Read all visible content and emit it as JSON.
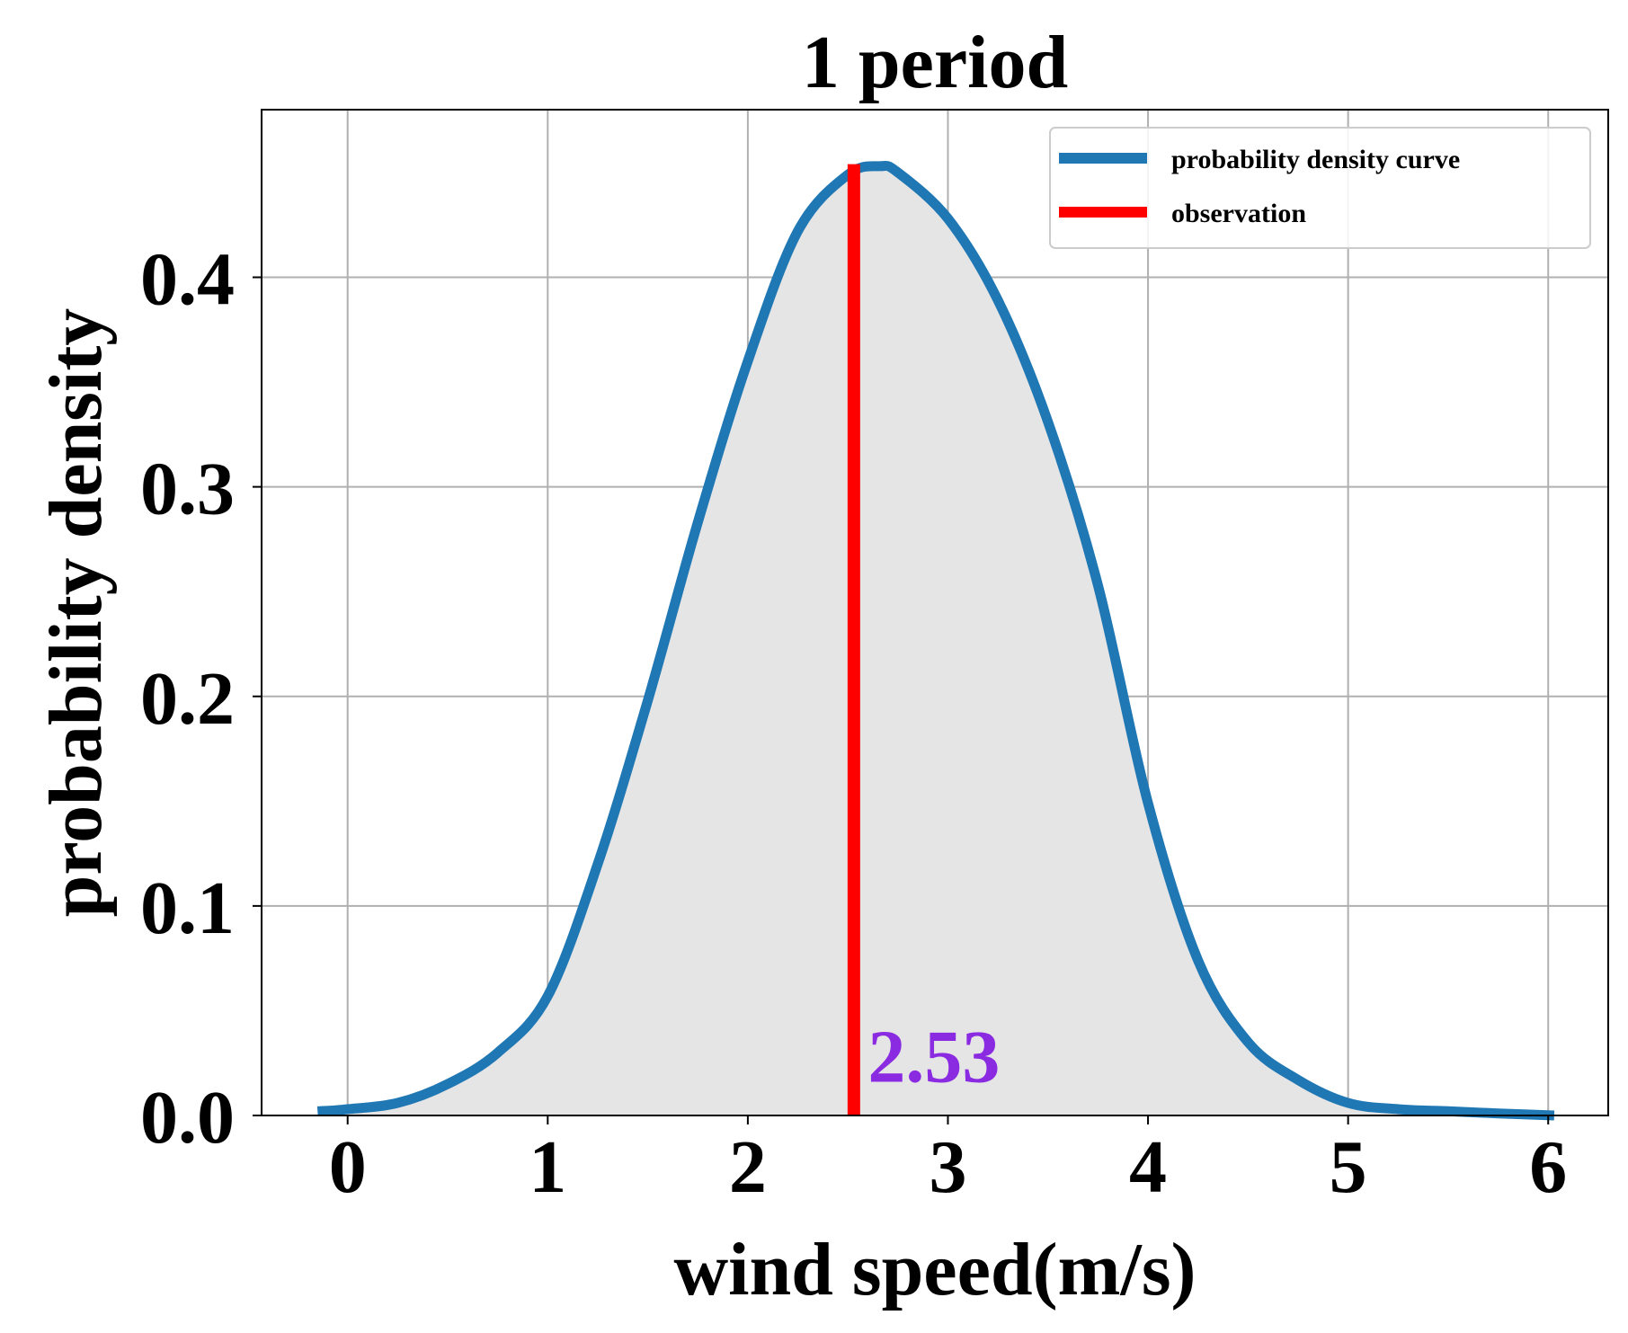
{
  "chart_data": {
    "type": "line",
    "title": "1 period",
    "xlabel": "wind speed(m/s)",
    "ylabel": "probability density",
    "xlim": [
      -0.43,
      6.3
    ],
    "ylim": [
      0,
      0.48
    ],
    "xticks": [
      "0",
      "1",
      "2",
      "3",
      "4",
      "5",
      "6"
    ],
    "yticks": [
      "0.0",
      "0.1",
      "0.2",
      "0.3",
      "0.4"
    ],
    "grid": true,
    "legend": {
      "placement": "top-right",
      "entries": [
        "probability density curve",
        "observation"
      ]
    },
    "series": [
      {
        "name": "probability density curve",
        "color": "#1f77b4",
        "fill_color": "#e5e5e5",
        "x": [
          -0.15,
          0.0,
          0.25,
          0.5,
          0.75,
          1.0,
          1.25,
          1.5,
          1.75,
          2.0,
          2.25,
          2.5,
          2.66,
          2.75,
          3.0,
          3.25,
          3.5,
          3.75,
          4.0,
          4.25,
          4.5,
          4.75,
          5.0,
          5.25,
          5.5,
          5.75,
          6.03
        ],
        "y": [
          0.002,
          0.003,
          0.006,
          0.015,
          0.03,
          0.057,
          0.12,
          0.198,
          0.283,
          0.36,
          0.422,
          0.449,
          0.453,
          0.45,
          0.428,
          0.389,
          0.331,
          0.253,
          0.149,
          0.074,
          0.035,
          0.017,
          0.006,
          0.003,
          0.002,
          0.001,
          0.0
        ]
      },
      {
        "name": "observation",
        "color": "#ff0000",
        "x": [
          2.53,
          2.53
        ],
        "y": [
          0,
          0.454
        ]
      }
    ],
    "annotations": [
      {
        "text": "2.53",
        "x": 2.6,
        "y": 0.016,
        "color": "#8a2be2"
      }
    ]
  }
}
